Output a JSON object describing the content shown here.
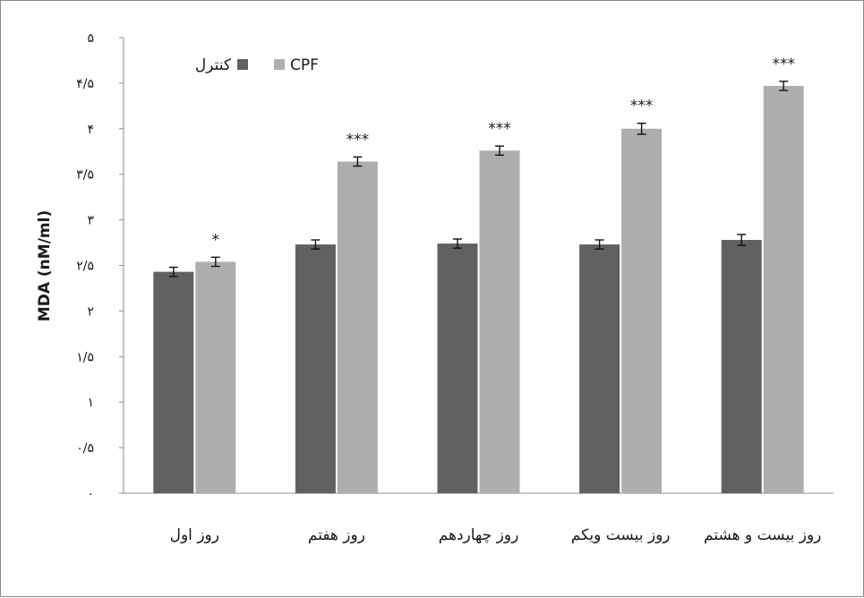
{
  "chart_data": {
    "type": "bar",
    "ylabel": "MDA (nM/ml)",
    "xlabel": "",
    "ylim": [
      0,
      5
    ],
    "yticks": [
      0,
      0.5,
      1,
      1.5,
      2,
      2.5,
      3,
      3.5,
      4,
      4.5,
      5
    ],
    "ytick_labels": [
      "۰",
      "۰/۵",
      "۱",
      "۱/۵",
      "۲",
      "۲/۵",
      "۳",
      "۳/۵",
      "۴",
      "۴/۵",
      "۵"
    ],
    "categories": [
      "روز اول",
      "روز هفتم",
      "روز چهاردهم",
      "روز بیست ویکم",
      "روز بیست و هشتم"
    ],
    "series": [
      {
        "name": "کنترل",
        "color": "#616161",
        "values": [
          2.43,
          2.73,
          2.74,
          2.73,
          2.78
        ],
        "errors": [
          0.05,
          0.05,
          0.05,
          0.05,
          0.06
        ]
      },
      {
        "name": "CPF",
        "color": "#aeaeae",
        "values": [
          2.54,
          3.64,
          3.76,
          4.0,
          4.47
        ],
        "errors": [
          0.05,
          0.05,
          0.05,
          0.06,
          0.05
        ],
        "significance": [
          "*",
          "***",
          "***",
          "***",
          "***"
        ]
      }
    ],
    "legend_position": "top-left",
    "grid": false
  }
}
